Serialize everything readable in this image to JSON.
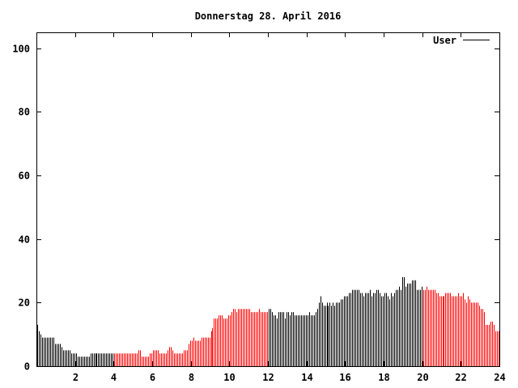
{
  "chart_data": {
    "type": "bar",
    "title": "Donnerstag 28. April 2016",
    "xlabel": "",
    "ylabel": "",
    "xlim": [
      0,
      24
    ],
    "ylim": [
      0,
      105
    ],
    "x_ticks": [
      "2",
      "4",
      "6",
      "8",
      "10",
      "12",
      "14",
      "16",
      "18",
      "20",
      "22",
      "24"
    ],
    "y_ticks": [
      "0",
      "20",
      "40",
      "60",
      "80",
      "100"
    ],
    "grid": false,
    "legend": {
      "position": "top-right",
      "entries": [
        "User"
      ]
    },
    "x_start": 0,
    "x_step_minutes": 5,
    "series": [
      {
        "name": "User",
        "values": [
          13,
          11,
          10,
          9,
          9,
          9,
          9,
          9,
          9,
          9,
          9,
          7,
          7,
          7,
          7,
          6,
          5,
          5,
          5,
          5,
          5,
          4,
          4,
          4,
          4,
          3,
          3,
          3,
          3,
          3,
          3,
          3,
          3,
          4,
          4,
          4,
          4,
          4,
          4,
          4,
          4,
          4,
          4,
          4,
          4,
          4,
          4,
          4,
          4,
          4,
          4,
          4,
          4,
          4,
          4,
          4,
          4,
          4,
          4,
          4,
          4,
          4,
          4,
          5,
          5,
          3,
          3,
          3,
          3,
          3,
          4,
          4,
          5,
          5,
          5,
          5,
          4,
          4,
          4,
          4,
          4,
          5,
          6,
          6,
          5,
          4,
          4,
          4,
          4,
          4,
          4,
          5,
          5,
          5,
          7,
          8,
          8,
          9,
          8,
          8,
          8,
          8,
          9,
          9,
          9,
          9,
          9,
          9,
          11,
          12,
          15,
          15,
          15,
          16,
          16,
          16,
          15,
          15,
          15,
          16,
          16,
          17,
          18,
          18,
          17,
          18,
          18,
          18,
          18,
          18,
          18,
          18,
          18,
          17,
          17,
          17,
          17,
          17,
          18,
          17,
          17,
          17,
          17,
          17,
          18,
          18,
          17,
          16,
          16,
          15,
          17,
          17,
          17,
          17,
          15,
          17,
          17,
          16,
          17,
          17,
          16,
          16,
          16,
          16,
          16,
          16,
          16,
          16,
          16,
          17,
          16,
          16,
          16,
          17,
          18,
          20,
          22,
          20,
          19,
          19,
          20,
          19,
          20,
          19,
          20,
          19,
          20,
          20,
          20,
          21,
          21,
          22,
          22,
          22,
          23,
          23,
          24,
          24,
          24,
          24,
          24,
          23,
          23,
          22,
          23,
          23,
          23,
          24,
          22,
          23,
          23,
          24,
          24,
          23,
          22,
          22,
          23,
          23,
          22,
          21,
          23,
          22,
          23,
          24,
          24,
          25,
          24,
          28,
          28,
          25,
          26,
          26,
          26,
          27,
          27,
          27,
          24,
          24,
          24,
          25,
          24,
          24,
          25,
          24,
          24,
          24,
          24,
          24,
          23,
          23,
          22,
          22,
          22,
          22,
          23,
          23,
          23,
          23,
          22,
          22,
          22,
          22,
          23,
          22,
          22,
          23,
          21,
          20,
          22,
          21,
          20,
          20,
          20,
          20,
          20,
          19,
          18,
          18,
          17,
          13,
          13,
          13,
          14,
          14,
          13,
          11,
          11,
          11
        ]
      }
    ],
    "color_segments": [
      {
        "from": 0,
        "to": 4,
        "color": "#000000"
      },
      {
        "from": 4,
        "to": 12,
        "color": "#ff0000"
      },
      {
        "from": 12,
        "to": 20,
        "color": "#000000"
      },
      {
        "from": 20,
        "to": 24,
        "color": "#ff0000"
      }
    ],
    "legend_line_color": "#000000"
  }
}
